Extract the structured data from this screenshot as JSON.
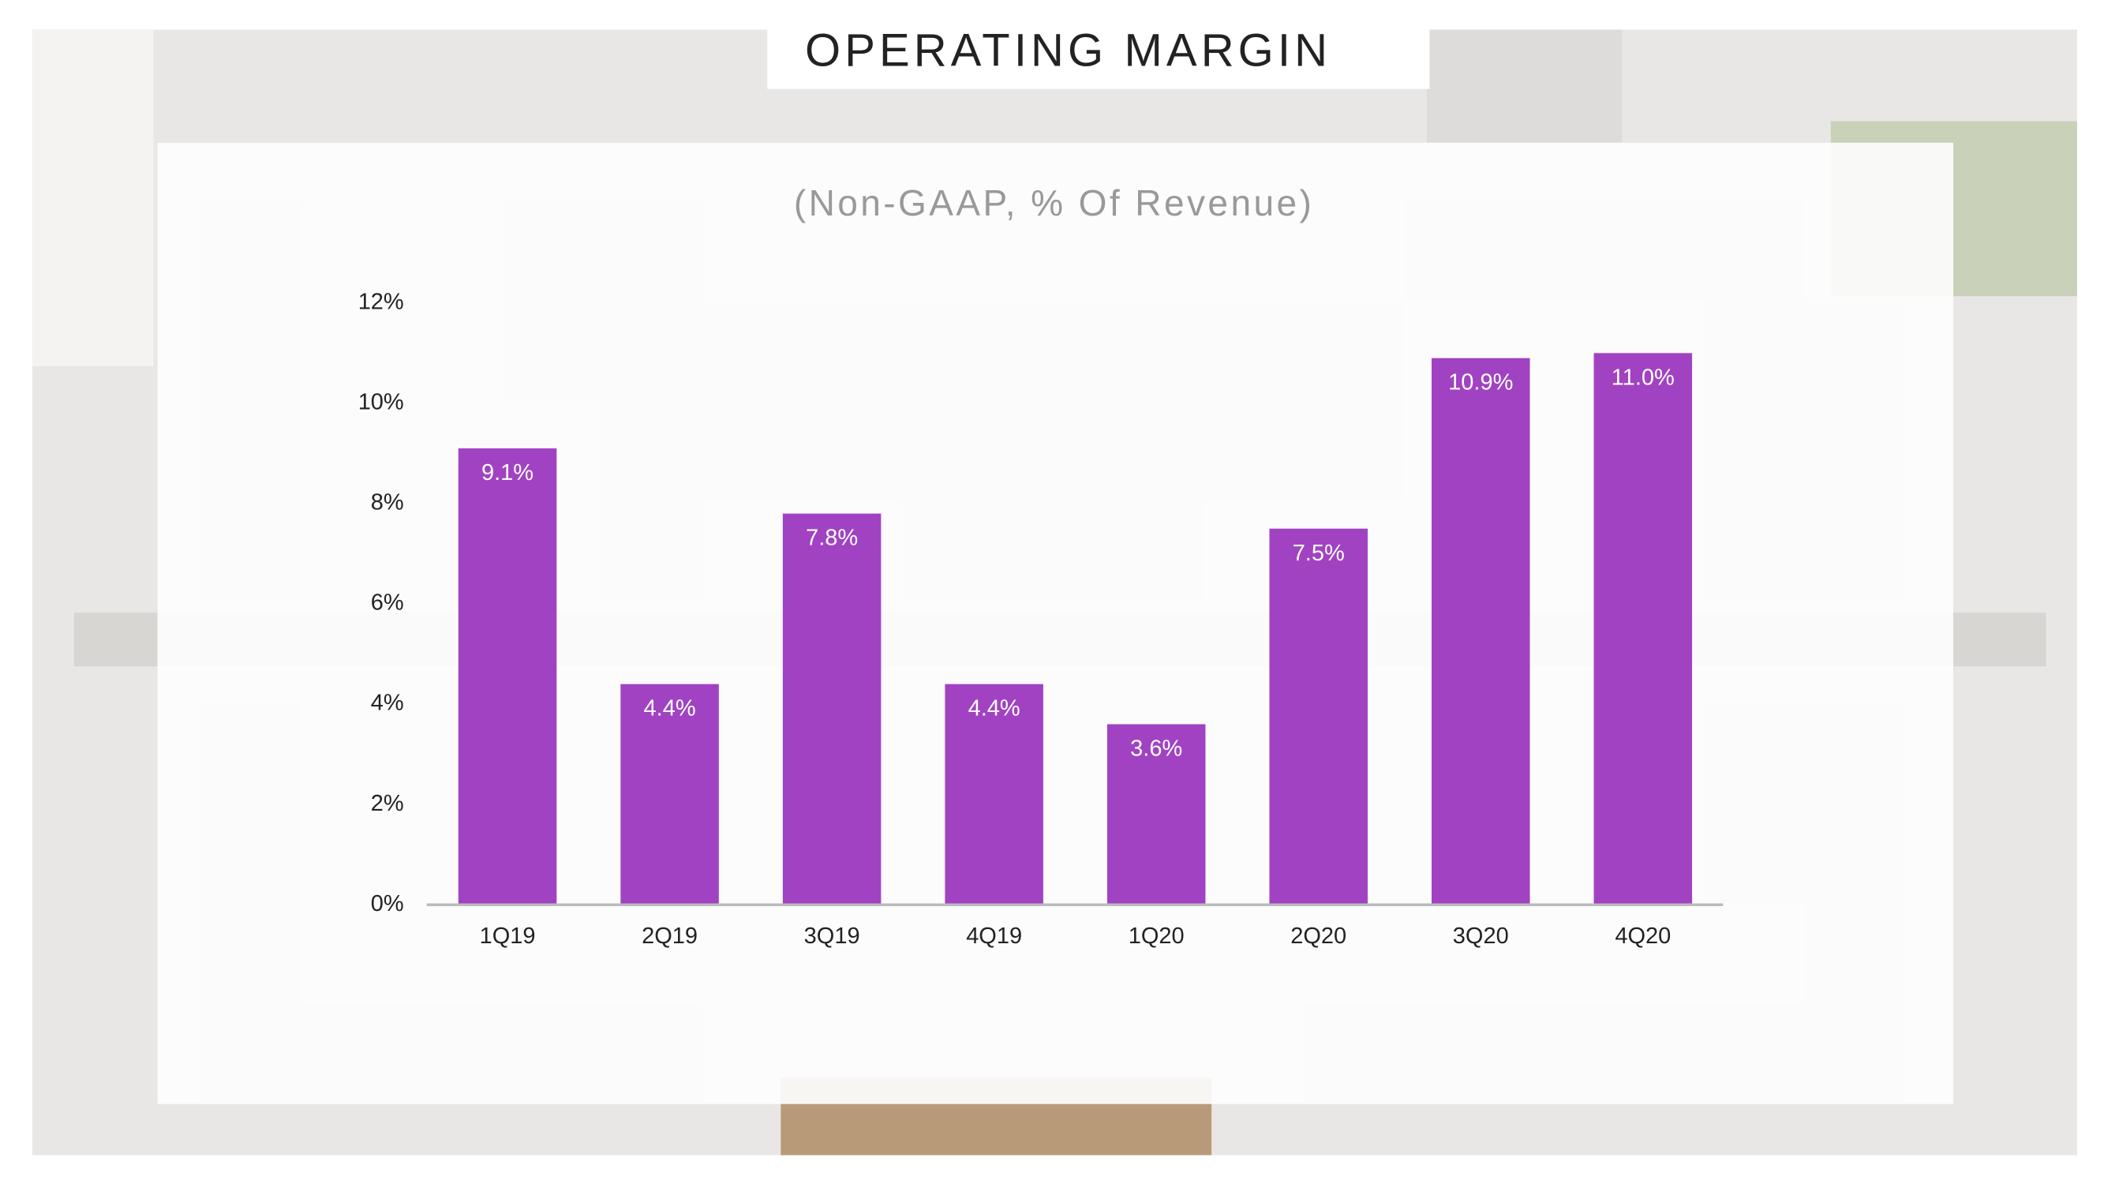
{
  "chart_data": {
    "type": "bar",
    "title": "OPERATING MARGIN",
    "subtitle": "(Non-GAAP, % Of Revenue)",
    "categories": [
      "1Q19",
      "2Q19",
      "3Q19",
      "4Q19",
      "1Q20",
      "2Q20",
      "3Q20",
      "4Q20"
    ],
    "values": [
      9.1,
      4.4,
      7.8,
      4.4,
      3.6,
      7.5,
      10.9,
      11.0
    ],
    "value_labels": [
      "9.1%",
      "4.4%",
      "7.8%",
      "4.4%",
      "3.6%",
      "7.5%",
      "10.9%",
      "11.0%"
    ],
    "color": "#a142c3",
    "ylim": [
      0,
      12
    ],
    "yticks": [
      {
        "value": 0,
        "label": "0%"
      },
      {
        "value": 2,
        "label": "2%"
      },
      {
        "value": 4,
        "label": "4%"
      },
      {
        "value": 6,
        "label": "6%"
      },
      {
        "value": 8,
        "label": "8%"
      },
      {
        "value": 10,
        "label": "10%"
      },
      {
        "value": 12,
        "label": "12%"
      }
    ],
    "grid": false
  }
}
